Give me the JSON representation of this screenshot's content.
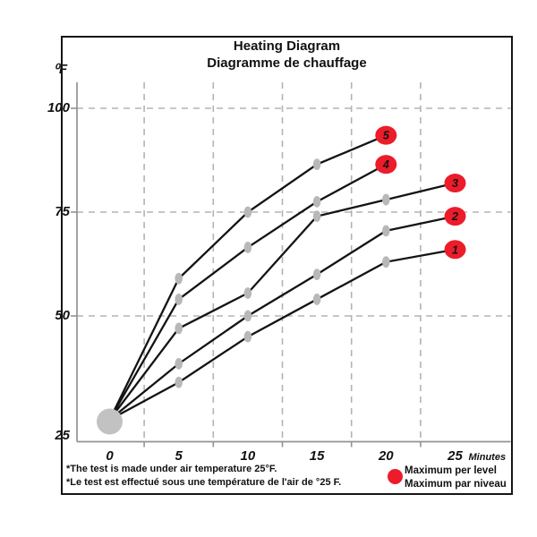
{
  "title": {
    "line1": "Heating Diagram",
    "line2": "Diagramme de chauffage"
  },
  "axes": {
    "y_unit": "⁰F",
    "x_unit": "Minutes",
    "y_ticks": [
      100,
      75,
      50,
      25
    ],
    "x_ticks": [
      0,
      5,
      10,
      15,
      20,
      25
    ]
  },
  "footnotes": [
    "*The test is made under air temperature 25°F.",
    "*Le test est effectué sous une température de l'air de °25  F."
  ],
  "legend": {
    "marker": "red-dot",
    "line1": "Maximum per level",
    "line2": "Maximum par niveau"
  },
  "colors": {
    "max_marker": "#ec1c2a",
    "series_line": "#141414",
    "point_marker": "#b8b8b8",
    "start_circle": "#c2c2c2",
    "gridline": "#b3b3b3",
    "axis": "#939393"
  },
  "chart_data": {
    "type": "line",
    "title": "Heating Diagram / Diagramme de chauffage",
    "xlabel": "Minutes",
    "ylabel": "°F",
    "xlim": [
      0,
      25
    ],
    "ylim": [
      25,
      100
    ],
    "grid": "dashed",
    "x_gridlines": [
      2.5,
      7.5,
      12.5,
      17.5,
      22.5
    ],
    "y_gridlines": [
      100,
      75,
      50
    ],
    "start_point": {
      "x": 0,
      "y": 25,
      "note": "common start, large gray dot"
    },
    "series": [
      {
        "name": "1",
        "x": [
          0,
          5,
          10,
          15,
          20,
          25
        ],
        "y": [
          25,
          34,
          45,
          54,
          63,
          66
        ],
        "max": {
          "x": 25,
          "y": 66
        }
      },
      {
        "name": "2",
        "x": [
          0,
          5,
          10,
          15,
          20,
          25
        ],
        "y": [
          25,
          38.5,
          50,
          60,
          70.5,
          74
        ],
        "max": {
          "x": 25,
          "y": 74
        }
      },
      {
        "name": "3",
        "x": [
          0,
          5,
          10,
          15,
          20,
          25
        ],
        "y": [
          25,
          47,
          55.5,
          74,
          78,
          82
        ],
        "max": {
          "x": 25,
          "y": 82
        }
      },
      {
        "name": "4",
        "x": [
          0,
          5,
          10,
          15,
          20
        ],
        "y": [
          25,
          54,
          66.5,
          77.5,
          86.5
        ],
        "max": {
          "x": 20,
          "y": 86.5
        }
      },
      {
        "name": "5",
        "x": [
          0,
          5,
          10,
          15,
          20
        ],
        "y": [
          25,
          59,
          75,
          86.5,
          93.5
        ],
        "max": {
          "x": 20,
          "y": 93.5
        }
      }
    ],
    "legend_label": "Maximum per level / Maximum par niveau"
  }
}
